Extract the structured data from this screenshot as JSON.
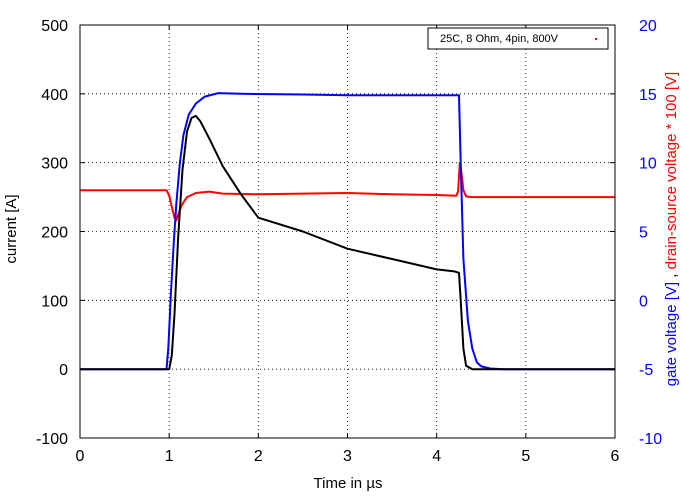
{
  "chart_data": {
    "type": "line",
    "legend": {
      "text": "25C, 8 Ohm, 4pin, 800V",
      "position": "top-right"
    },
    "grid": true,
    "xaxis": {
      "label": "Time in µs",
      "range": [
        0,
        6
      ],
      "ticks": [
        0,
        1,
        2,
        3,
        4,
        5,
        6
      ]
    },
    "yaxis_left": {
      "label": "current [A]",
      "range": [
        -100,
        500
      ],
      "ticks": [
        -100,
        0,
        100,
        200,
        300,
        400,
        500
      ]
    },
    "yaxis_right": {
      "label_part1": "gate voltage [V]",
      "label_sep": " , ",
      "label_part2": "drain-source voltage * 100 [V]",
      "range": [
        -10,
        20
      ],
      "ticks": [
        -10,
        -5,
        0,
        5,
        10,
        15,
        20
      ],
      "color_part1": "#0000ff",
      "color_part2": "#ff0000"
    },
    "series": [
      {
        "axis": "right",
        "color": "#ff0000",
        "x": [
          0,
          0.5,
          0.97,
          1.0,
          1.03,
          1.06,
          1.08,
          1.1,
          1.14,
          1.2,
          1.3,
          1.45,
          1.6,
          2.0,
          2.5,
          3.0,
          3.5,
          4.0,
          4.22,
          4.24,
          4.26,
          4.28,
          4.3,
          4.33,
          4.4,
          4.6,
          5.0,
          6.0
        ],
        "y": [
          8.0,
          8.0,
          8.0,
          7.6,
          6.8,
          6.0,
          5.8,
          6.2,
          6.9,
          7.5,
          7.8,
          7.9,
          7.75,
          7.7,
          7.75,
          7.8,
          7.7,
          7.65,
          7.6,
          7.9,
          10.0,
          9.2,
          8.0,
          7.55,
          7.5,
          7.5,
          7.5,
          7.5
        ]
      },
      {
        "axis": "right",
        "color": "#0000ff",
        "x": [
          0,
          0.97,
          0.99,
          1.02,
          1.05,
          1.08,
          1.12,
          1.16,
          1.22,
          1.3,
          1.4,
          1.55,
          1.8,
          2.5,
          3.0,
          3.5,
          4.0,
          4.25,
          4.27,
          4.3,
          4.35,
          4.4,
          4.45,
          4.5,
          4.6,
          4.75,
          5.0,
          6.0
        ],
        "y": [
          -5.0,
          -5.0,
          -3.5,
          0.5,
          4.0,
          7.0,
          10.0,
          12.0,
          13.5,
          14.3,
          14.8,
          15.05,
          15.0,
          14.95,
          14.9,
          14.9,
          14.9,
          14.9,
          10.0,
          3.0,
          -1.5,
          -3.5,
          -4.5,
          -4.8,
          -4.95,
          -5.0,
          -5.0,
          -5.0
        ]
      },
      {
        "axis": "left",
        "color": "#000000",
        "x": [
          0,
          1.0,
          1.03,
          1.06,
          1.1,
          1.15,
          1.2,
          1.25,
          1.3,
          1.35,
          1.45,
          1.6,
          1.8,
          2.0,
          2.5,
          3.0,
          3.5,
          4.0,
          4.2,
          4.25,
          4.27,
          4.3,
          4.33,
          4.4,
          4.5,
          6.0
        ],
        "y": [
          0,
          0,
          20,
          80,
          190,
          290,
          345,
          365,
          368,
          360,
          335,
          295,
          255,
          220,
          200,
          175,
          160,
          145,
          142,
          140,
          100,
          30,
          5,
          0,
          0,
          0
        ]
      }
    ]
  }
}
